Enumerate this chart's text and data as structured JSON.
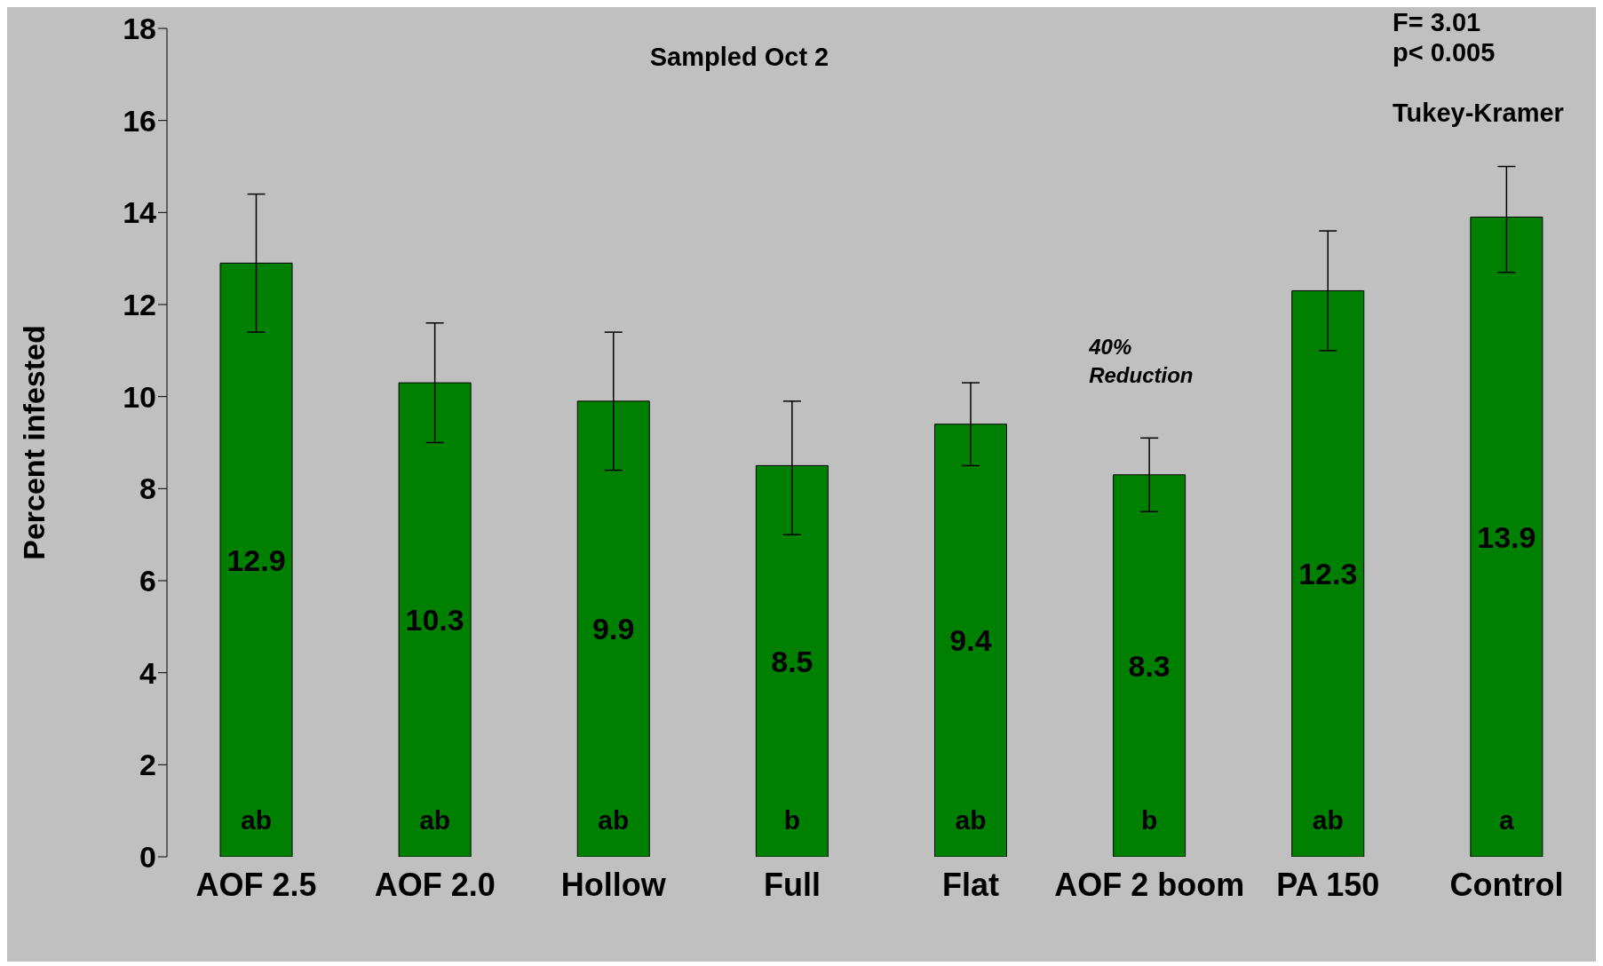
{
  "chart_data": {
    "type": "bar",
    "title": "Sampled  Oct 2",
    "ylabel": "Percent  infested",
    "categories": [
      "AOF 2.5",
      "AOF 2.0",
      "Hollow",
      "Full",
      "Flat",
      "AOF 2 boom",
      "PA 150",
      "Control"
    ],
    "values": [
      12.9,
      10.3,
      9.9,
      8.5,
      9.4,
      8.3,
      12.3,
      13.9
    ],
    "errors": [
      [
        11.4,
        14.4
      ],
      [
        9.0,
        11.6
      ],
      [
        8.4,
        11.4
      ],
      [
        7.0,
        9.9
      ],
      [
        8.5,
        10.3
      ],
      [
        7.5,
        9.1
      ],
      [
        11.0,
        13.6
      ],
      [
        12.7,
        15.0
      ]
    ],
    "color": "#008000",
    "ylim": [
      0,
      18
    ],
    "yticks": [
      0,
      2,
      4,
      6,
      8,
      10,
      12,
      14,
      16,
      18
    ],
    "grid": false,
    "legend": false,
    "data_labels": true,
    "annotations": [
      "ab",
      "ab",
      "ab",
      "b",
      "ab",
      "b",
      "ab",
      "a",
      "40% Reduction",
      "F= 3.01",
      "p< 0.005",
      "Tukey-Kramer"
    ]
  }
}
